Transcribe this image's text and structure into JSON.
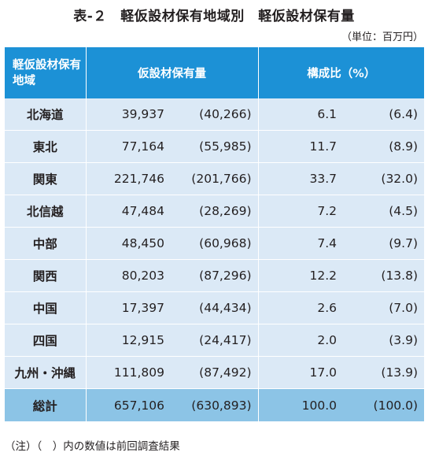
{
  "title": "表-２　軽仮設材保有地域別　軽仮設材保有量",
  "unit": "（単位：百万円）",
  "header": {
    "region": "軽仮設材保有地域",
    "amount": "仮設材保有量",
    "ratio": "構成比（%）"
  },
  "rows": [
    {
      "region": "北海道",
      "amount": "39,937",
      "amount_prev": "(40,266)",
      "ratio": "6.1",
      "ratio_prev": "(6.4)"
    },
    {
      "region": "東北",
      "amount": "77,164",
      "amount_prev": "(55,985)",
      "ratio": "11.7",
      "ratio_prev": "(8.9)"
    },
    {
      "region": "関東",
      "amount": "221,746",
      "amount_prev": "(201,766)",
      "ratio": "33.7",
      "ratio_prev": "(32.0)"
    },
    {
      "region": "北信越",
      "amount": "47,484",
      "amount_prev": "(28,269)",
      "ratio": "7.2",
      "ratio_prev": "(4.5)"
    },
    {
      "region": "中部",
      "amount": "48,450",
      "amount_prev": "(60,968)",
      "ratio": "7.4",
      "ratio_prev": "(9.7)"
    },
    {
      "region": "関西",
      "amount": "80,203",
      "amount_prev": "(87,296)",
      "ratio": "12.2",
      "ratio_prev": "(13.8)"
    },
    {
      "region": "中国",
      "amount": "17,397",
      "amount_prev": "(44,434)",
      "ratio": "2.6",
      "ratio_prev": "(7.0)"
    },
    {
      "region": "四国",
      "amount": "12,915",
      "amount_prev": "(24,417)",
      "ratio": "2.0",
      "ratio_prev": "(3.9)"
    },
    {
      "region": "九州・沖縄",
      "amount": "111,809",
      "amount_prev": "(87,492)",
      "ratio": "17.0",
      "ratio_prev": "(13.9)"
    }
  ],
  "total": {
    "region": "総計",
    "amount": "657,106",
    "amount_prev": "(630,893)",
    "ratio": "100.0",
    "ratio_prev": "(100.0)"
  },
  "note": "（注）（　）内の数値は前回調査結果",
  "colors": {
    "header_bg": "#1c91d6",
    "row_bg": "#dbe9f6",
    "total_bg": "#8cc4e6"
  }
}
